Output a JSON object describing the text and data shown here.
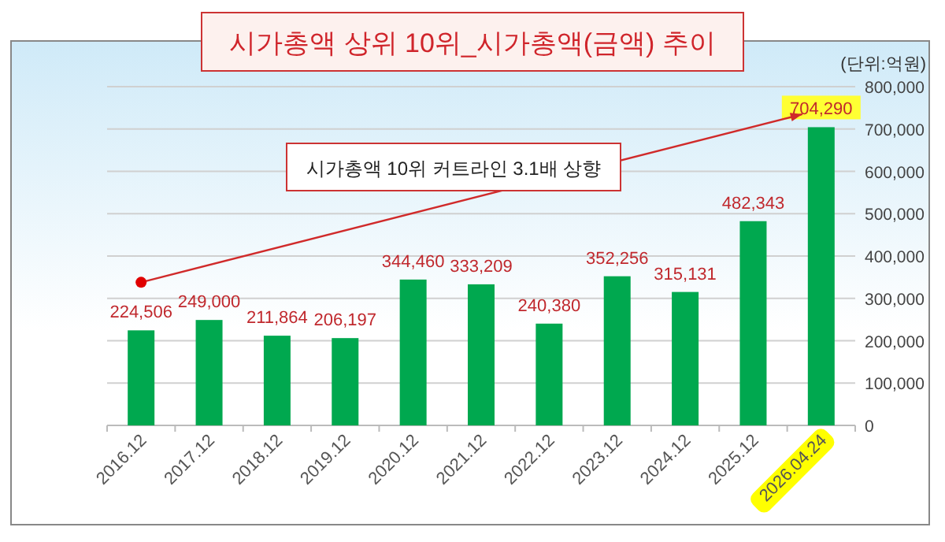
{
  "chart_data": {
    "type": "bar",
    "title": "시가총액 상위 10위_시가총액(금액) 추이",
    "categories": [
      "2016.12",
      "2017.12",
      "2018.12",
      "2019.12",
      "2020.12",
      "2021.12",
      "2022.12",
      "2023.12",
      "2024.12",
      "2025.12",
      "2026.04.24"
    ],
    "values": [
      224506,
      249000,
      211864,
      206197,
      344460,
      333209,
      240380,
      352256,
      315131,
      482343,
      704290
    ],
    "value_labels": [
      "224,506",
      "249,000",
      "211,864",
      "206,197",
      "344,460",
      "333,209",
      "240,380",
      "352,256",
      "315,131",
      "482,343",
      "704,290"
    ],
    "color": "#00a84f",
    "ylim": [
      0,
      800000
    ],
    "yticks": [
      0,
      {
        "value": 100000,
        "label": "100,000"
      },
      {
        "value": 200000,
        "label": "200,000"
      },
      {
        "value": 300000,
        "label": "300,000"
      },
      {
        "value": 400000,
        "label": "400,000"
      },
      {
        "value": 500000,
        "label": "500,000"
      },
      {
        "value": 600000,
        "label": "600,000"
      },
      {
        "value": 700000,
        "label": "700,000"
      },
      {
        "value": 800000,
        "label": "800,000"
      }
    ],
    "grid": "y",
    "annotations": [
      "(단위:억원)",
      "시가총액 10위 커트라인 3.1배 상향"
    ]
  }
}
